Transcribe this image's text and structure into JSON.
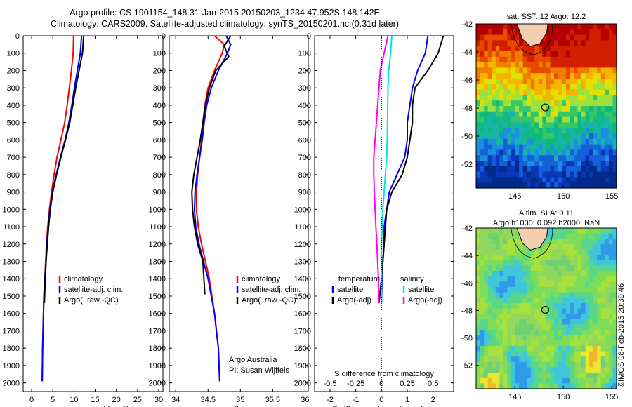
{
  "header": {
    "line1": "Argo profile: CS 1901154_148 31-Jan-2015 20150203_1234 47.952S 148.142E",
    "line2": "Climatology: CARS2009. Satellite-adjusted climatology: synTS_20150201.nc (0.31d later)"
  },
  "colors": {
    "climatology": "#ff0000",
    "satellite": "#0000ff",
    "argo": "#000000",
    "s_satellite": "#00e5e5",
    "s_argo": "#ff00ff"
  },
  "depth_ticks": [
    0,
    100,
    200,
    300,
    400,
    500,
    600,
    700,
    800,
    900,
    1000,
    1100,
    1200,
    1300,
    1400,
    1500,
    1600,
    1700,
    1800,
    1900,
    2000
  ],
  "panels": {
    "temperature": {
      "xlabel": "temperature (deg C)",
      "xticks": [
        "0",
        "5",
        "10",
        "15",
        "20",
        "25",
        "30"
      ],
      "legend": [
        "climatology",
        "satellite-adj. clim.",
        "Argo(..raw -QC)"
      ]
    },
    "salinity": {
      "xlabel": "salinity",
      "xticks": [
        "34",
        "34.5",
        "35",
        "35.5",
        "36"
      ],
      "legend": [
        "climatology",
        "satellite-adj. clim.",
        "Argo(..raw -QC)"
      ],
      "credit1": "Argo Australia",
      "credit2": "PI: Susan Wijffels"
    },
    "difference": {
      "xlabel": "T difference from climatology",
      "xticks": [
        "-2",
        "-1",
        "0",
        "1",
        "2"
      ],
      "s_label": "S difference from climatology",
      "s_ticks": [
        "-0.5",
        "-0.25",
        "0",
        "0.25",
        "0.5"
      ],
      "legend_t_title": "temperature",
      "legend_s_title": "salinity",
      "legend_t": [
        "satellite",
        "Argo(-adj)"
      ],
      "legend_s": [
        "satellite",
        "Argo(-adj)"
      ]
    }
  },
  "maps": {
    "sst": {
      "title": "sat. SST: 12 Argo: 12.2",
      "yticks": [
        "-42",
        "-44",
        "-46",
        "-48",
        "-50",
        "-52"
      ],
      "xticks": [
        "145",
        "150",
        "155"
      ]
    },
    "sla": {
      "title1": "Altim. SLA: 0.11",
      "title2": "Argo h1000: 0.092 h2000: NaN",
      "yticks": [
        "-42",
        "-44",
        "-46",
        "-48",
        "-50",
        "-52"
      ],
      "xticks": [
        "145",
        "150",
        "155"
      ]
    },
    "argo_position": {
      "lon": 148.142,
      "lat": -47.952
    }
  },
  "footer": {
    "stamp": "©IMOS 08-Feb-2015 20:39:46"
  },
  "chart_data": [
    {
      "type": "line",
      "xlabel": "temperature (deg C)",
      "ylabel": "",
      "xlim": [
        -2,
        31
      ],
      "ylim": [
        2050,
        0
      ],
      "series": [
        {
          "name": "climatology",
          "x": [
            9.9,
            9.8,
            9.4,
            8.9,
            8.4,
            7.8,
            6.9,
            6.0,
            5.3,
            4.7,
            4.2,
            3.8,
            3.5,
            3.3,
            3.1,
            2.9,
            2.8,
            2.7,
            2.6,
            2.55,
            2.5
          ],
          "y": [
            0,
            100,
            200,
            300,
            400,
            500,
            600,
            700,
            800,
            900,
            1000,
            1100,
            1200,
            1300,
            1400,
            1500,
            1600,
            1700,
            1800,
            1900,
            1990
          ]
        },
        {
          "name": "satellite-adj. clim.",
          "x": [
            11.8,
            11.5,
            10.8,
            10.1,
            9.5,
            8.8,
            7.9,
            6.8,
            5.8,
            4.9,
            4.3,
            3.9,
            3.6,
            3.4,
            3.1,
            2.9,
            2.8,
            2.7,
            2.6,
            2.55,
            2.5
          ],
          "y": [
            0,
            100,
            200,
            300,
            400,
            500,
            600,
            700,
            800,
            900,
            1000,
            1100,
            1200,
            1300,
            1400,
            1500,
            1600,
            1700,
            1800,
            1900,
            1990
          ]
        },
        {
          "name": "Argo(..raw -QC)",
          "x": [
            12.3,
            12.0,
            11.2,
            10.4,
            9.7,
            9.0,
            8.0,
            6.9,
            5.9,
            5.0,
            4.4,
            4.0,
            3.7,
            3.4,
            3.2,
            3.0
          ],
          "y": [
            0,
            100,
            200,
            300,
            400,
            500,
            600,
            700,
            800,
            900,
            1000,
            1100,
            1200,
            1300,
            1400,
            1540
          ]
        }
      ]
    },
    {
      "type": "line",
      "xlabel": "salinity",
      "ylabel": "",
      "xlim": [
        33.9,
        36.05
      ],
      "ylim": [
        2050,
        0
      ],
      "series": [
        {
          "name": "climatology",
          "x": [
            34.6,
            34.75,
            34.72,
            34.6,
            34.5,
            34.45,
            34.42,
            34.4,
            34.37,
            34.34,
            34.32,
            34.32,
            34.35,
            34.4,
            34.46,
            34.52,
            34.56,
            34.6,
            34.63,
            34.66,
            34.68
          ],
          "y": [
            0,
            50,
            100,
            200,
            300,
            400,
            500,
            600,
            700,
            800,
            900,
            1000,
            1100,
            1200,
            1300,
            1400,
            1500,
            1600,
            1700,
            1800,
            1990
          ]
        },
        {
          "name": "satellite-adj. clim.",
          "x": [
            34.78,
            34.85,
            34.8,
            34.66,
            34.55,
            34.48,
            34.44,
            34.41,
            34.37,
            34.33,
            34.3,
            34.29,
            34.31,
            34.36,
            34.43,
            34.5,
            34.55,
            34.6,
            34.63,
            34.66,
            34.68
          ],
          "y": [
            0,
            50,
            100,
            200,
            300,
            400,
            500,
            600,
            700,
            800,
            900,
            1000,
            1100,
            1200,
            1300,
            1400,
            1500,
            1600,
            1700,
            1800,
            1990
          ]
        },
        {
          "name": "Argo(..raw -QC)",
          "x": [
            34.85,
            34.75,
            34.82,
            34.62,
            34.52,
            34.46,
            34.42,
            34.38,
            34.33,
            34.28,
            34.25,
            34.26,
            34.29,
            34.34,
            34.42,
            34.45
          ],
          "y": [
            0,
            60,
            120,
            200,
            300,
            400,
            500,
            600,
            700,
            800,
            900,
            1000,
            1100,
            1200,
            1300,
            1490
          ]
        }
      ]
    },
    {
      "type": "line",
      "xlabel": "T difference from climatology",
      "ylabel": "",
      "xlim": [
        -2.6,
        2.8
      ],
      "ylim": [
        2050,
        0
      ],
      "series": [
        {
          "name": "temperature satellite",
          "x": [
            1.8,
            1.7,
            1.4,
            1.2,
            1.1,
            1.0,
            1.0,
            0.9,
            0.6,
            0.3,
            0.2,
            0.1,
            0.1,
            0.05,
            0.02,
            0.0
          ],
          "y": [
            0,
            100,
            200,
            300,
            400,
            500,
            600,
            700,
            800,
            900,
            1000,
            1100,
            1200,
            1300,
            1400,
            1540
          ]
        },
        {
          "name": "temperature Argo(-adj)",
          "x": [
            2.4,
            2.2,
            1.8,
            1.3,
            1.2,
            1.2,
            1.1,
            1.0,
            0.8,
            0.4,
            0.2,
            0.15,
            0.1,
            0.05,
            0.0,
            -0.1
          ],
          "y": [
            0,
            100,
            200,
            300,
            400,
            500,
            600,
            700,
            800,
            900,
            1000,
            1100,
            1200,
            1300,
            1400,
            1540
          ]
        },
        {
          "name": "salinity satellite",
          "x": [
            0.4,
            0.35,
            0.28,
            0.25,
            0.24,
            0.23,
            0.22,
            0.2,
            0.15,
            0.1,
            0.05,
            0.02,
            0.0,
            0.0,
            0.0,
            0.0
          ],
          "y": [
            0,
            100,
            200,
            300,
            400,
            500,
            600,
            700,
            800,
            900,
            1000,
            1100,
            1200,
            1300,
            1400,
            1540
          ]
        },
        {
          "name": "salinity Argo(-adj)",
          "x": [
            0.25,
            0.1,
            -0.05,
            -0.1,
            -0.15,
            -0.2,
            -0.25,
            -0.3,
            -0.3,
            -0.28,
            -0.25,
            -0.22,
            -0.18,
            -0.15,
            -0.12,
            -0.1
          ],
          "y": [
            0,
            100,
            200,
            300,
            400,
            500,
            600,
            700,
            800,
            900,
            1000,
            1100,
            1200,
            1300,
            1400,
            1540
          ]
        }
      ]
    },
    {
      "type": "heatmap",
      "title": "sat. SST: 12 Argo: 12.2",
      "xlim": [
        141,
        155.5
      ],
      "ylim": [
        -53.7,
        -42
      ],
      "x_ticks": [
        145,
        150,
        155
      ],
      "y_ticks": [
        -42,
        -44,
        -46,
        -48,
        -50,
        -52
      ],
      "argo_position": [
        148.142,
        -47.952
      ]
    },
    {
      "type": "heatmap",
      "title": "Altim. SLA: 0.11",
      "subtitle": "Argo h1000: 0.092 h2000: NaN",
      "xlim": [
        141,
        155.5
      ],
      "ylim": [
        -53.7,
        -42
      ],
      "x_ticks": [
        145,
        150,
        155
      ],
      "y_ticks": [
        -42,
        -44,
        -46,
        -48,
        -50,
        -52
      ],
      "argo_position": [
        148.142,
        -47.952
      ]
    }
  ]
}
